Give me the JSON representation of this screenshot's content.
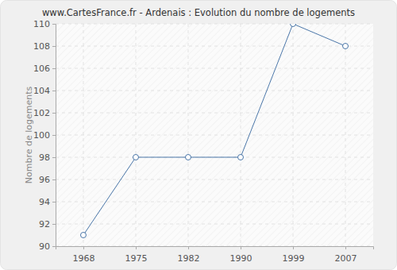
{
  "chart_data": {
    "type": "line",
    "title": "www.CartesFrance.fr - Ardenais : Evolution du nombre de logements",
    "y_label": "Nombre de logements",
    "categories": [
      "1968",
      "1975",
      "1982",
      "1990",
      "1999",
      "2007"
    ],
    "values": [
      91,
      98,
      98,
      98,
      110,
      108
    ],
    "color": "#4a76a8",
    "marker": "circle",
    "ylim": [
      90,
      110
    ],
    "yticks": [
      90,
      92,
      94,
      96,
      98,
      100,
      102,
      104,
      106,
      108,
      110
    ],
    "grid": true
  }
}
